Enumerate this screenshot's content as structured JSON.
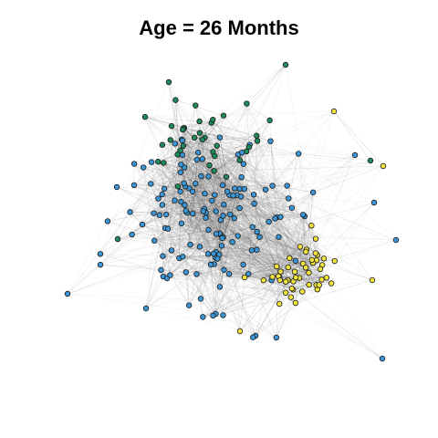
{
  "title": "Age = 26 Months",
  "colors": {
    "group_blue": "#3a96d6",
    "group_green": "#1f8a5a",
    "group_yellow": "#f2e23c",
    "node_stroke": "#1a1a1a",
    "edge": "#555555"
  },
  "network": {
    "groups": [
      "blue",
      "green",
      "yellow"
    ],
    "node_counts": {
      "blue": 150,
      "green": 40,
      "yellow": 50
    }
  }
}
